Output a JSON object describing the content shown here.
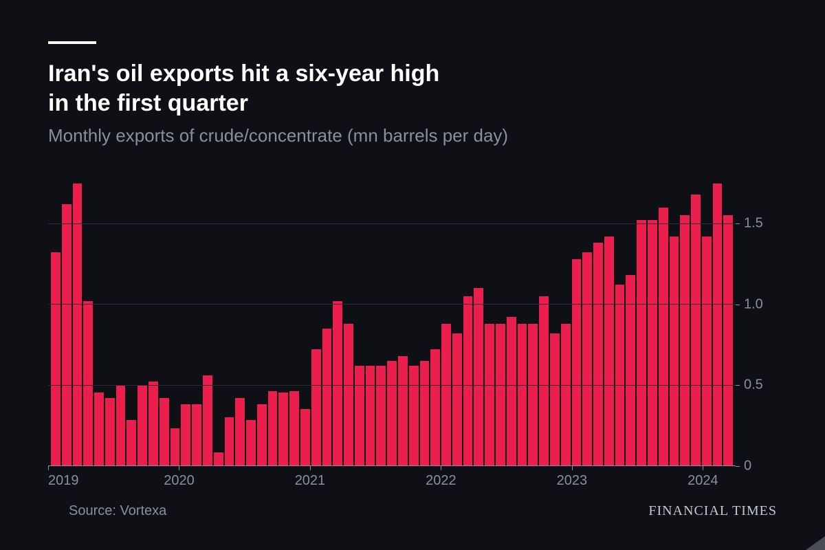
{
  "title_line1": "Iran's oil exports hit a six-year high",
  "title_line2": "in the first quarter",
  "subtitle": "Monthly exports of crude/concentrate (mn barrels per day)",
  "source_label": "Source: Vortexa",
  "brand": "FINANCIAL TIMES",
  "chart": {
    "type": "bar",
    "background_color": "#0f1015",
    "bar_color": "#eb1e4e",
    "grid_color": "#2a2d36",
    "axis_color": "#8a8f99",
    "text_color": "#8a8f99",
    "ylim": [
      0,
      1.8
    ],
    "yticks": [
      0,
      0.5,
      1.0,
      1.5
    ],
    "ytick_labels": [
      "0",
      "0.5",
      "1.0",
      "1.5"
    ],
    "xtick_labels": [
      "2019",
      "2020",
      "2021",
      "2022",
      "2023",
      "2024"
    ],
    "xtick_positions": [
      0,
      12,
      24,
      36,
      48,
      60
    ],
    "n_bars": 63,
    "values": [
      1.32,
      1.62,
      1.75,
      1.02,
      0.45,
      0.42,
      0.5,
      0.28,
      0.5,
      0.52,
      0.42,
      0.23,
      0.38,
      0.38,
      0.56,
      0.08,
      0.3,
      0.42,
      0.28,
      0.38,
      0.46,
      0.45,
      0.46,
      0.35,
      0.72,
      0.85,
      1.02,
      0.88,
      0.62,
      0.62,
      0.62,
      0.65,
      0.68,
      0.62,
      0.65,
      0.72,
      0.88,
      0.82,
      1.05,
      1.1,
      0.88,
      0.88,
      0.92,
      0.88,
      0.88,
      1.05,
      0.82,
      0.88,
      1.28,
      1.32,
      1.38,
      1.42,
      1.12,
      1.18,
      1.52,
      1.52,
      1.6,
      1.42,
      1.55,
      1.68,
      1.42,
      1.75,
      1.55
    ]
  }
}
